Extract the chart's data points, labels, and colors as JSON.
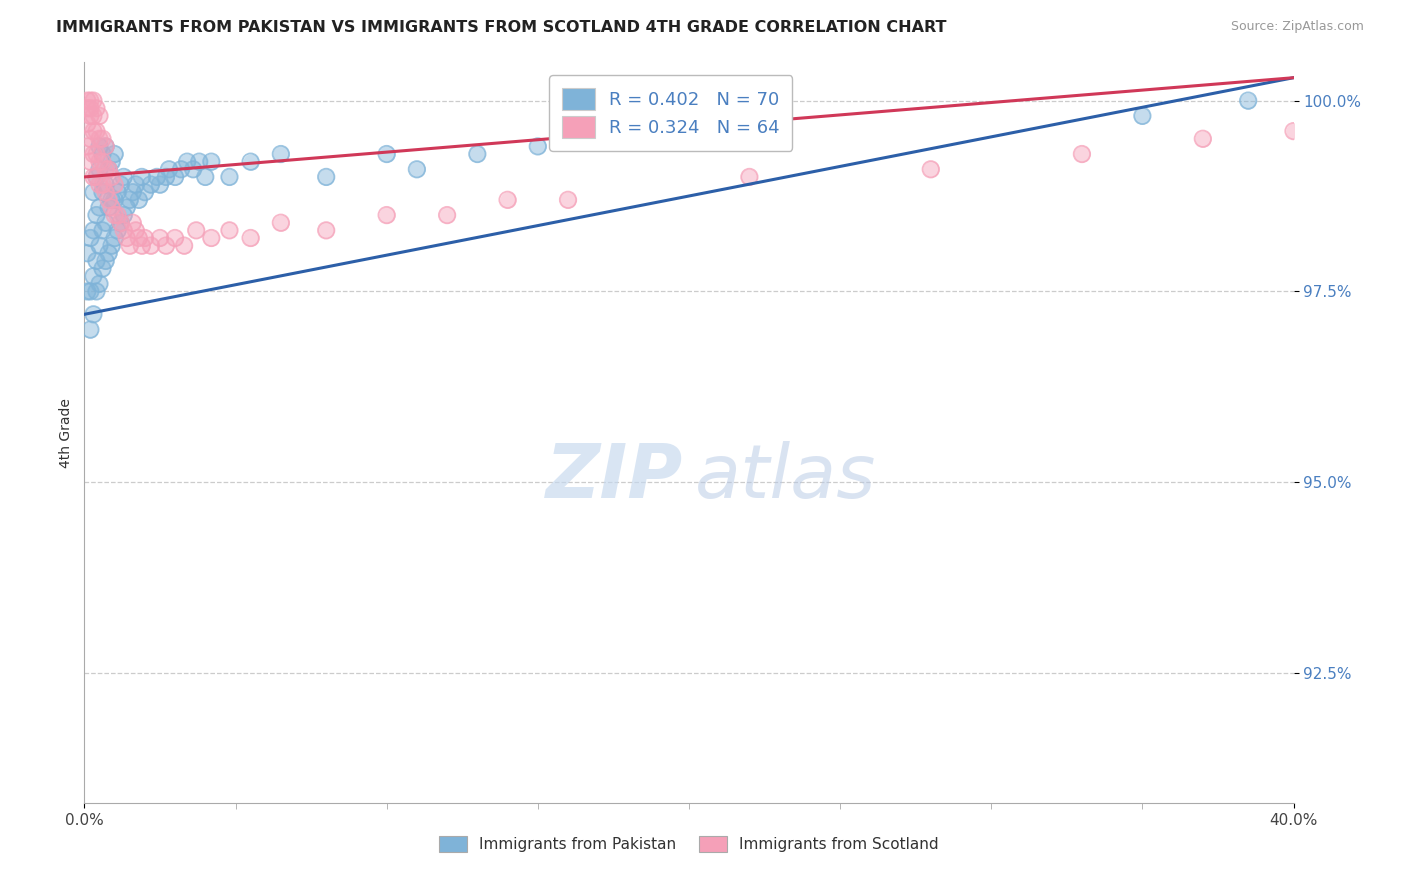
{
  "title": "IMMIGRANTS FROM PAKISTAN VS IMMIGRANTS FROM SCOTLAND 4TH GRADE CORRELATION CHART",
  "source": "Source: ZipAtlas.com",
  "ylabel": "4th Grade",
  "ytick_labels": [
    "100.0%",
    "97.5%",
    "95.0%",
    "92.5%"
  ],
  "ytick_values": [
    1.0,
    0.975,
    0.95,
    0.925
  ],
  "xlim": [
    0.0,
    0.4
  ],
  "ylim": [
    0.908,
    1.005
  ],
  "R_pakistan": 0.402,
  "N_pakistan": 70,
  "R_scotland": 0.324,
  "N_scotland": 64,
  "color_pakistan": "#7fb3d8",
  "color_scotland": "#f5a0b8",
  "trendline_pakistan": "#2c5fa8",
  "trendline_scotland": "#d03858",
  "legend_label_pakistan": "Immigrants from Pakistan",
  "legend_label_scotland": "Immigrants from Scotland",
  "pak_trendline_x0": 0.0,
  "pak_trendline_y0": 0.972,
  "pak_trendline_x1": 0.4,
  "pak_trendline_y1": 1.003,
  "sco_trendline_x0": 0.0,
  "sco_trendline_y0": 0.99,
  "sco_trendline_x1": 0.4,
  "sco_trendline_y1": 1.003,
  "pakistan_x": [
    0.001,
    0.001,
    0.002,
    0.002,
    0.002,
    0.003,
    0.003,
    0.003,
    0.003,
    0.004,
    0.004,
    0.004,
    0.004,
    0.005,
    0.005,
    0.005,
    0.005,
    0.005,
    0.006,
    0.006,
    0.006,
    0.006,
    0.007,
    0.007,
    0.007,
    0.007,
    0.008,
    0.008,
    0.008,
    0.009,
    0.009,
    0.009,
    0.01,
    0.01,
    0.01,
    0.011,
    0.011,
    0.012,
    0.012,
    0.013,
    0.013,
    0.014,
    0.015,
    0.016,
    0.017,
    0.018,
    0.019,
    0.02,
    0.022,
    0.024,
    0.025,
    0.027,
    0.028,
    0.03,
    0.032,
    0.034,
    0.036,
    0.038,
    0.04,
    0.042,
    0.048,
    0.055,
    0.065,
    0.08,
    0.1,
    0.11,
    0.13,
    0.15,
    0.35,
    0.385
  ],
  "pakistan_y": [
    0.975,
    0.98,
    0.97,
    0.975,
    0.982,
    0.972,
    0.977,
    0.983,
    0.988,
    0.975,
    0.979,
    0.985,
    0.99,
    0.976,
    0.981,
    0.986,
    0.991,
    0.994,
    0.978,
    0.983,
    0.988,
    0.993,
    0.979,
    0.984,
    0.989,
    0.994,
    0.98,
    0.986,
    0.991,
    0.981,
    0.987,
    0.992,
    0.982,
    0.987,
    0.993,
    0.983,
    0.988,
    0.984,
    0.989,
    0.985,
    0.99,
    0.986,
    0.987,
    0.988,
    0.989,
    0.987,
    0.99,
    0.988,
    0.989,
    0.99,
    0.989,
    0.99,
    0.991,
    0.99,
    0.991,
    0.992,
    0.991,
    0.992,
    0.99,
    0.992,
    0.99,
    0.992,
    0.993,
    0.99,
    0.993,
    0.991,
    0.993,
    0.994,
    0.998,
    1.0
  ],
  "scotland_x": [
    0.001,
    0.001,
    0.001,
    0.001,
    0.002,
    0.002,
    0.002,
    0.002,
    0.002,
    0.003,
    0.003,
    0.003,
    0.003,
    0.003,
    0.004,
    0.004,
    0.004,
    0.004,
    0.005,
    0.005,
    0.005,
    0.005,
    0.006,
    0.006,
    0.006,
    0.007,
    0.007,
    0.007,
    0.008,
    0.008,
    0.009,
    0.009,
    0.01,
    0.01,
    0.011,
    0.012,
    0.013,
    0.014,
    0.015,
    0.016,
    0.017,
    0.018,
    0.019,
    0.02,
    0.022,
    0.025,
    0.027,
    0.03,
    0.033,
    0.037,
    0.042,
    0.048,
    0.055,
    0.065,
    0.08,
    0.1,
    0.12,
    0.14,
    0.16,
    0.22,
    0.28,
    0.33,
    0.37,
    0.4
  ],
  "scotland_y": [
    0.994,
    0.997,
    0.999,
    1.0,
    0.992,
    0.995,
    0.998,
    0.999,
    1.0,
    0.99,
    0.993,
    0.996,
    0.998,
    1.0,
    0.99,
    0.993,
    0.996,
    0.999,
    0.989,
    0.992,
    0.995,
    0.998,
    0.989,
    0.992,
    0.995,
    0.988,
    0.991,
    0.994,
    0.987,
    0.991,
    0.986,
    0.99,
    0.985,
    0.989,
    0.985,
    0.984,
    0.983,
    0.982,
    0.981,
    0.984,
    0.983,
    0.982,
    0.981,
    0.982,
    0.981,
    0.982,
    0.981,
    0.982,
    0.981,
    0.983,
    0.982,
    0.983,
    0.982,
    0.984,
    0.983,
    0.985,
    0.985,
    0.987,
    0.987,
    0.99,
    0.991,
    0.993,
    0.995,
    0.996
  ]
}
